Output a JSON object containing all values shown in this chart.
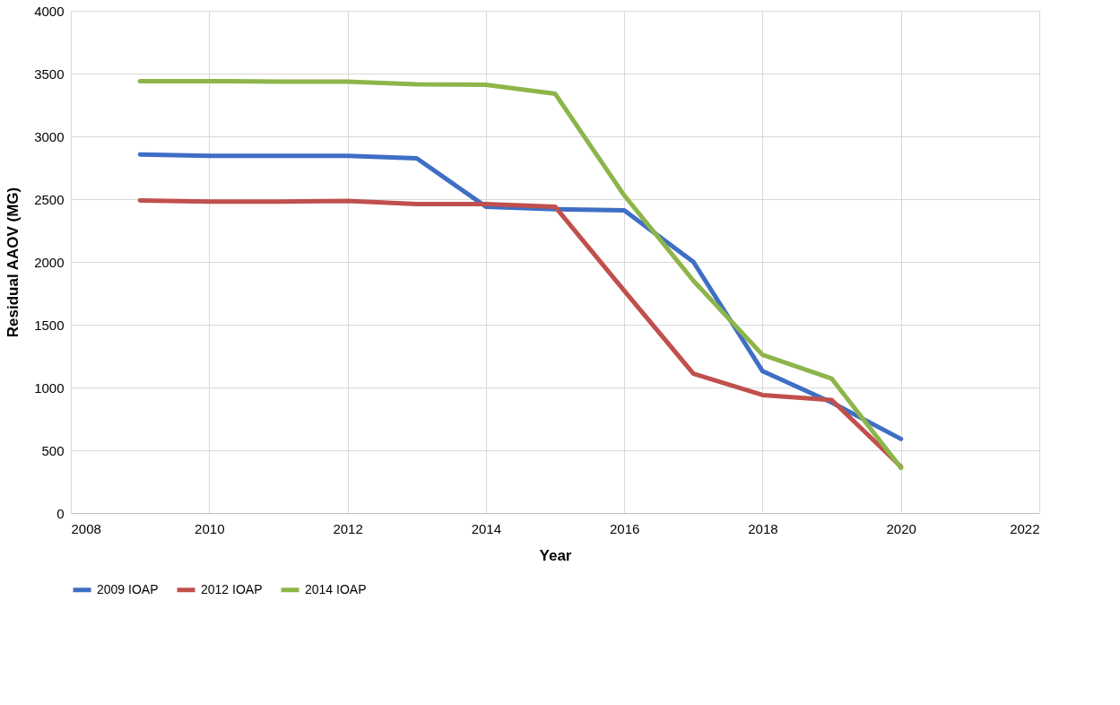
{
  "chart_data": {
    "type": "line",
    "xlabel": "Year",
    "ylabel": "Residual AAOV (MG)",
    "x": [
      2009,
      2010,
      2011,
      2012,
      2013,
      2014,
      2015,
      2016,
      2017,
      2018,
      2019,
      2020
    ],
    "series": [
      {
        "name": "2009 IOAP",
        "color": "#3f6fc4",
        "values": [
          2855,
          2845,
          2845,
          2845,
          2825,
          2440,
          2420,
          2410,
          2000,
          1130,
          880,
          590
        ]
      },
      {
        "name": "2012 IOAP",
        "color": "#c0504d",
        "values": [
          2490,
          2480,
          2480,
          2485,
          2460,
          2460,
          2440,
          1770,
          1110,
          940,
          900,
          370
        ]
      },
      {
        "name": "2014 IOAP",
        "color": "#8db54a",
        "values": [
          3440,
          3440,
          3435,
          3435,
          3415,
          3410,
          3340,
          2530,
          1850,
          1260,
          1070,
          360
        ]
      }
    ],
    "xlim": [
      2008,
      2022
    ],
    "xticks": [
      2008,
      2010,
      2012,
      2014,
      2016,
      2018,
      2020,
      2022
    ],
    "ylim": [
      0,
      4000
    ],
    "yticks": [
      0,
      500,
      1000,
      1500,
      2000,
      2500,
      3000,
      3500,
      4000
    ],
    "grid": true,
    "legend": "bottom",
    "marker": "none",
    "line_style": "solid"
  }
}
